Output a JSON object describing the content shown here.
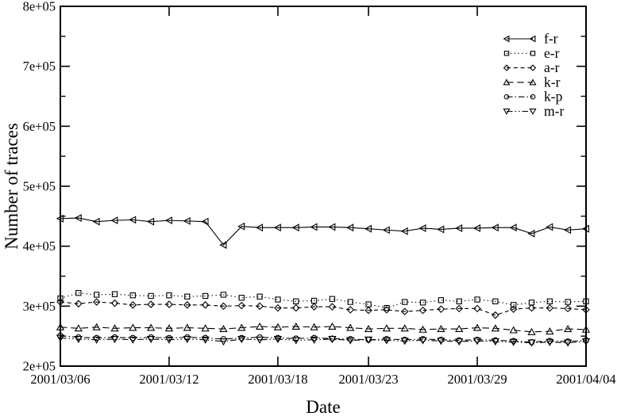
{
  "figure": {
    "background": "#ffffff",
    "foreground": "#000000"
  },
  "chart_data": {
    "type": "line",
    "title": "",
    "xlabel": "Date",
    "ylabel": "Number of traces",
    "grid": false,
    "legend_position": "upper-right",
    "ylim": [
      200000,
      800000
    ],
    "ytick_values": [
      200000,
      300000,
      400000,
      500000,
      600000,
      700000,
      800000
    ],
    "ytick_labels": [
      "2e+05",
      "3e+05",
      "4e+05",
      "5e+05",
      "6e+05",
      "7e+05",
      "8e+05"
    ],
    "yminor_values": [
      250000,
      350000,
      450000,
      550000,
      650000,
      750000
    ],
    "x": [
      "2001/03/06",
      "2001/03/07",
      "2001/03/08",
      "2001/03/09",
      "2001/03/10",
      "2001/03/11",
      "2001/03/12",
      "2001/03/13",
      "2001/03/14",
      "2001/03/15",
      "2001/03/16",
      "2001/03/17",
      "2001/03/18",
      "2001/03/19",
      "2001/03/20",
      "2001/03/21",
      "2001/03/22",
      "2001/03/23",
      "2001/03/24",
      "2001/03/25",
      "2001/03/26",
      "2001/03/27",
      "2001/03/28",
      "2001/03/29",
      "2001/03/30",
      "2001/03/31",
      "2001/04/01",
      "2001/04/02",
      "2001/04/03",
      "2001/04/04"
    ],
    "xtick_day_offsets": [
      0,
      6,
      12,
      17,
      23,
      29
    ],
    "xtick_labels": [
      "2001/03/06",
      "2001/03/12",
      "2001/03/18",
      "2001/03/23",
      "2001/03/29",
      "2001/04/04"
    ],
    "series": [
      {
        "name": "f-r",
        "marker": "triangle-left",
        "line": "solid",
        "values": [
          446000,
          447000,
          441000,
          443000,
          444000,
          441000,
          443000,
          442000,
          441000,
          402000,
          433000,
          431000,
          431000,
          431000,
          432000,
          432000,
          431000,
          429000,
          427000,
          425000,
          430000,
          428000,
          430000,
          430000,
          431000,
          431000,
          421000,
          432000,
          427000,
          429000
        ]
      },
      {
        "name": "e-r",
        "marker": "square",
        "line": "dotted",
        "values": [
          313000,
          322000,
          319000,
          320000,
          318000,
          317000,
          318000,
          316000,
          317000,
          319000,
          314000,
          316000,
          311000,
          308000,
          309000,
          312000,
          307000,
          303000,
          297000,
          307000,
          306000,
          310000,
          308000,
          311000,
          308000,
          302000,
          306000,
          308000,
          307000,
          308000
        ]
      },
      {
        "name": "a-r",
        "marker": "diamond",
        "line": "dashed",
        "values": [
          307000,
          304000,
          307000,
          305000,
          302000,
          303000,
          303000,
          302000,
          302000,
          300000,
          301000,
          300000,
          297000,
          297000,
          299000,
          299000,
          294000,
          293000,
          294000,
          291000,
          293000,
          295000,
          296000,
          296000,
          285000,
          295000,
          297000,
          297000,
          296000,
          294000
        ]
      },
      {
        "name": "k-r",
        "marker": "triangle-up",
        "line": "long-dash",
        "values": [
          265000,
          263000,
          265000,
          263000,
          264000,
          264000,
          263000,
          264000,
          263000,
          262000,
          264000,
          266000,
          265000,
          266000,
          265000,
          266000,
          264000,
          262000,
          263000,
          263000,
          261000,
          262000,
          262000,
          264000,
          263000,
          260000,
          257000,
          258000,
          262000,
          261000
        ]
      },
      {
        "name": "k-p",
        "marker": "circle",
        "line": "dash-dot",
        "values": [
          251000,
          248000,
          247000,
          248000,
          247000,
          248000,
          247000,
          248000,
          247000,
          245000,
          247000,
          248000,
          247000,
          246000,
          247000,
          246000,
          245000,
          244000,
          245000,
          244000,
          245000,
          244000,
          243000,
          244000,
          243000,
          242000,
          240000,
          242000,
          241000,
          243000
        ]
      },
      {
        "name": "m-r",
        "marker": "triangle-down",
        "line": "dash-dot-dot",
        "values": [
          247000,
          245000,
          244000,
          245000,
          244000,
          245000,
          244000,
          245000,
          244000,
          241000,
          245000,
          244000,
          245000,
          243000,
          244000,
          245000,
          243000,
          244000,
          243000,
          242000,
          243000,
          242000,
          241000,
          242000,
          241000,
          240000,
          239000,
          240000,
          239000,
          241000
        ]
      }
    ]
  }
}
